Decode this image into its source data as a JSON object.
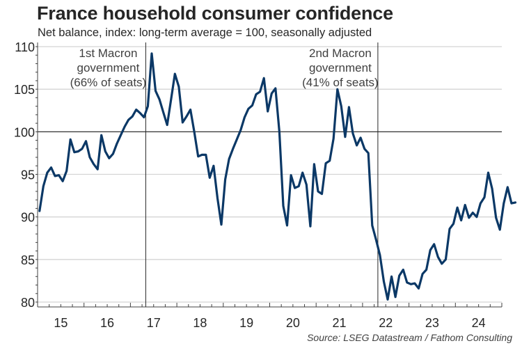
{
  "header": {
    "title": "France household consumer confidence",
    "subtitle": "Net balance, index: long-term average = 100, seasonally adjusted"
  },
  "footer": {
    "source": "Source: LSEG Datastream / Fathom Consulting"
  },
  "chart_data": {
    "type": "line",
    "title": "France household consumer confidence",
    "subtitle": "Net balance, index: long-term average = 100, seasonally adjusted",
    "xlabel": "",
    "ylabel": "",
    "ylim": [
      80,
      110
    ],
    "yticks": [
      80,
      85,
      90,
      95,
      100,
      105,
      110
    ],
    "ytick_labels": [
      "80",
      "85",
      "90",
      "95",
      "100",
      "105",
      "110"
    ],
    "xlim": [
      2015.0,
      2025.0
    ],
    "xtick_labels": [
      "15",
      "16",
      "17",
      "18",
      "19",
      "20",
      "21",
      "22",
      "23",
      "24"
    ],
    "xtick_years": [
      2015,
      2016,
      2017,
      2018,
      2019,
      2020,
      2021,
      2022,
      2023,
      2024
    ],
    "grid": "horizontal",
    "reference_line": 100,
    "series_color": "#0b3866",
    "annotations": [
      {
        "x": 2017.33,
        "lines": [
          "1st Macron",
          "government",
          "(66% of seats)"
        ],
        "side": "left"
      },
      {
        "x": 2022.33,
        "lines": [
          "2nd Macron",
          "government",
          "(41% of seats)"
        ],
        "side": "left"
      }
    ],
    "series": [
      {
        "name": "France household consumer confidence",
        "start": "2015-01",
        "frequency": "monthly",
        "values": [
          90.7,
          93.6,
          95.2,
          95.8,
          94.8,
          94.9,
          94.2,
          95.4,
          99.1,
          97.6,
          97.7,
          98.0,
          98.9,
          97.0,
          96.2,
          95.6,
          99.6,
          97.7,
          96.9,
          97.4,
          98.6,
          99.6,
          100.6,
          101.4,
          101.8,
          102.6,
          102.2,
          101.7,
          103.0,
          109.2,
          104.8,
          103.8,
          102.3,
          100.8,
          103.8,
          106.8,
          105.3,
          101.1,
          101.8,
          102.6,
          100.0,
          97.1,
          97.3,
          97.3,
          94.6,
          96.0,
          92.2,
          89.1,
          94.4,
          96.8,
          98.0,
          99.1,
          100.2,
          101.7,
          102.7,
          103.1,
          104.4,
          104.7,
          106.3,
          102.4,
          104.5,
          105.1,
          100.0,
          91.3,
          89.0,
          94.9,
          93.4,
          93.6,
          95.2,
          93.8,
          88.9,
          96.2,
          93.0,
          92.7,
          96.3,
          96.6,
          99.2,
          105.0,
          103.0,
          99.4,
          102.9,
          99.8,
          98.4,
          99.3,
          98.0,
          97.5,
          89.0,
          87.3,
          85.5,
          82.4,
          80.3,
          83.0,
          80.6,
          83.1,
          83.8,
          82.3,
          82.1,
          82.2,
          81.6,
          83.3,
          83.8,
          86.1,
          86.8,
          85.3,
          84.5,
          85.0,
          88.6,
          89.2,
          91.1,
          89.6,
          91.4,
          89.9,
          90.5,
          90.0,
          91.6,
          92.3,
          95.2,
          93.3,
          89.9,
          88.5,
          91.6,
          93.5,
          91.6,
          91.7
        ]
      }
    ]
  }
}
